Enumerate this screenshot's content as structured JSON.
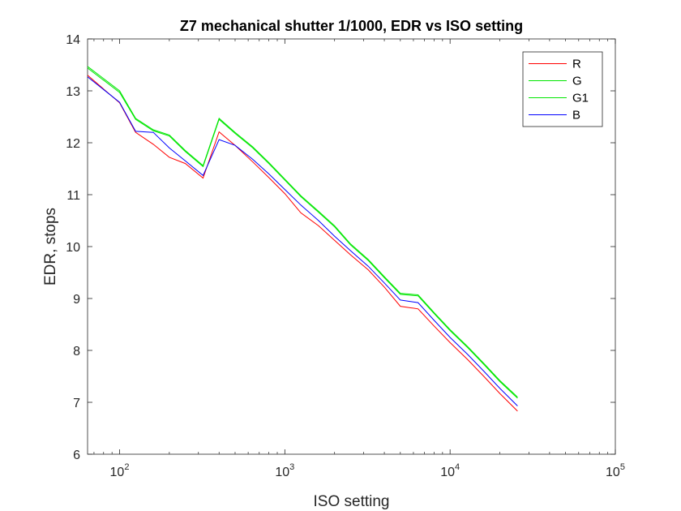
{
  "chart_data": {
    "type": "line",
    "title": "Z7 mechanical shutter 1/1000, EDR vs ISO setting",
    "xlabel": "ISO setting",
    "ylabel": "EDR, stops",
    "xscale": "log",
    "xlim": [
      64,
      100000
    ],
    "ylim": [
      6,
      14
    ],
    "xticks": [
      {
        "value": 100,
        "base": "10",
        "exp": "2"
      },
      {
        "value": 1000,
        "base": "10",
        "exp": "3"
      },
      {
        "value": 10000,
        "base": "10",
        "exp": "4"
      },
      {
        "value": 100000,
        "base": "10",
        "exp": "5"
      }
    ],
    "yticks": [
      6,
      7,
      8,
      9,
      10,
      11,
      12,
      13,
      14
    ],
    "grid": false,
    "legend_position": "top-right",
    "x": [
      64,
      100,
      125,
      160,
      200,
      250,
      320,
      400,
      500,
      640,
      800,
      1000,
      1250,
      1600,
      2000,
      2500,
      3200,
      4000,
      5000,
      6400,
      8000,
      10000,
      12800,
      16000,
      20000,
      25600
    ],
    "series": [
      {
        "name": "R",
        "color": "#ff0000",
        "values": [
          13.3,
          12.77,
          12.2,
          11.97,
          11.72,
          11.6,
          11.32,
          12.21,
          11.95,
          11.63,
          11.33,
          11.02,
          10.65,
          10.4,
          10.12,
          9.84,
          9.55,
          9.22,
          8.85,
          8.8,
          8.47,
          8.15,
          7.82,
          7.5,
          7.17,
          6.83
        ]
      },
      {
        "name": "G",
        "color": "#00e600",
        "values": [
          13.47,
          13.0,
          12.47,
          12.25,
          12.15,
          11.85,
          11.56,
          12.47,
          12.2,
          11.92,
          11.62,
          11.3,
          10.98,
          10.68,
          10.4,
          10.05,
          9.75,
          9.42,
          9.1,
          9.07,
          8.73,
          8.4,
          8.07,
          7.75,
          7.42,
          7.1
        ]
      },
      {
        "name": "G1",
        "color": "#00e600",
        "values": [
          13.44,
          12.97,
          12.45,
          12.23,
          12.13,
          11.83,
          11.54,
          12.45,
          12.18,
          11.9,
          11.6,
          11.28,
          10.96,
          10.66,
          10.38,
          10.03,
          9.73,
          9.4,
          9.08,
          9.05,
          8.71,
          8.38,
          8.05,
          7.73,
          7.4,
          7.08
        ]
      },
      {
        "name": "B",
        "color": "#0000ff",
        "values": [
          13.27,
          12.78,
          12.22,
          12.2,
          11.9,
          11.65,
          11.37,
          12.06,
          11.95,
          11.68,
          11.4,
          11.1,
          10.8,
          10.5,
          10.2,
          9.92,
          9.62,
          9.3,
          8.97,
          8.92,
          8.58,
          8.25,
          7.92,
          7.6,
          7.27,
          6.93
        ]
      }
    ]
  }
}
